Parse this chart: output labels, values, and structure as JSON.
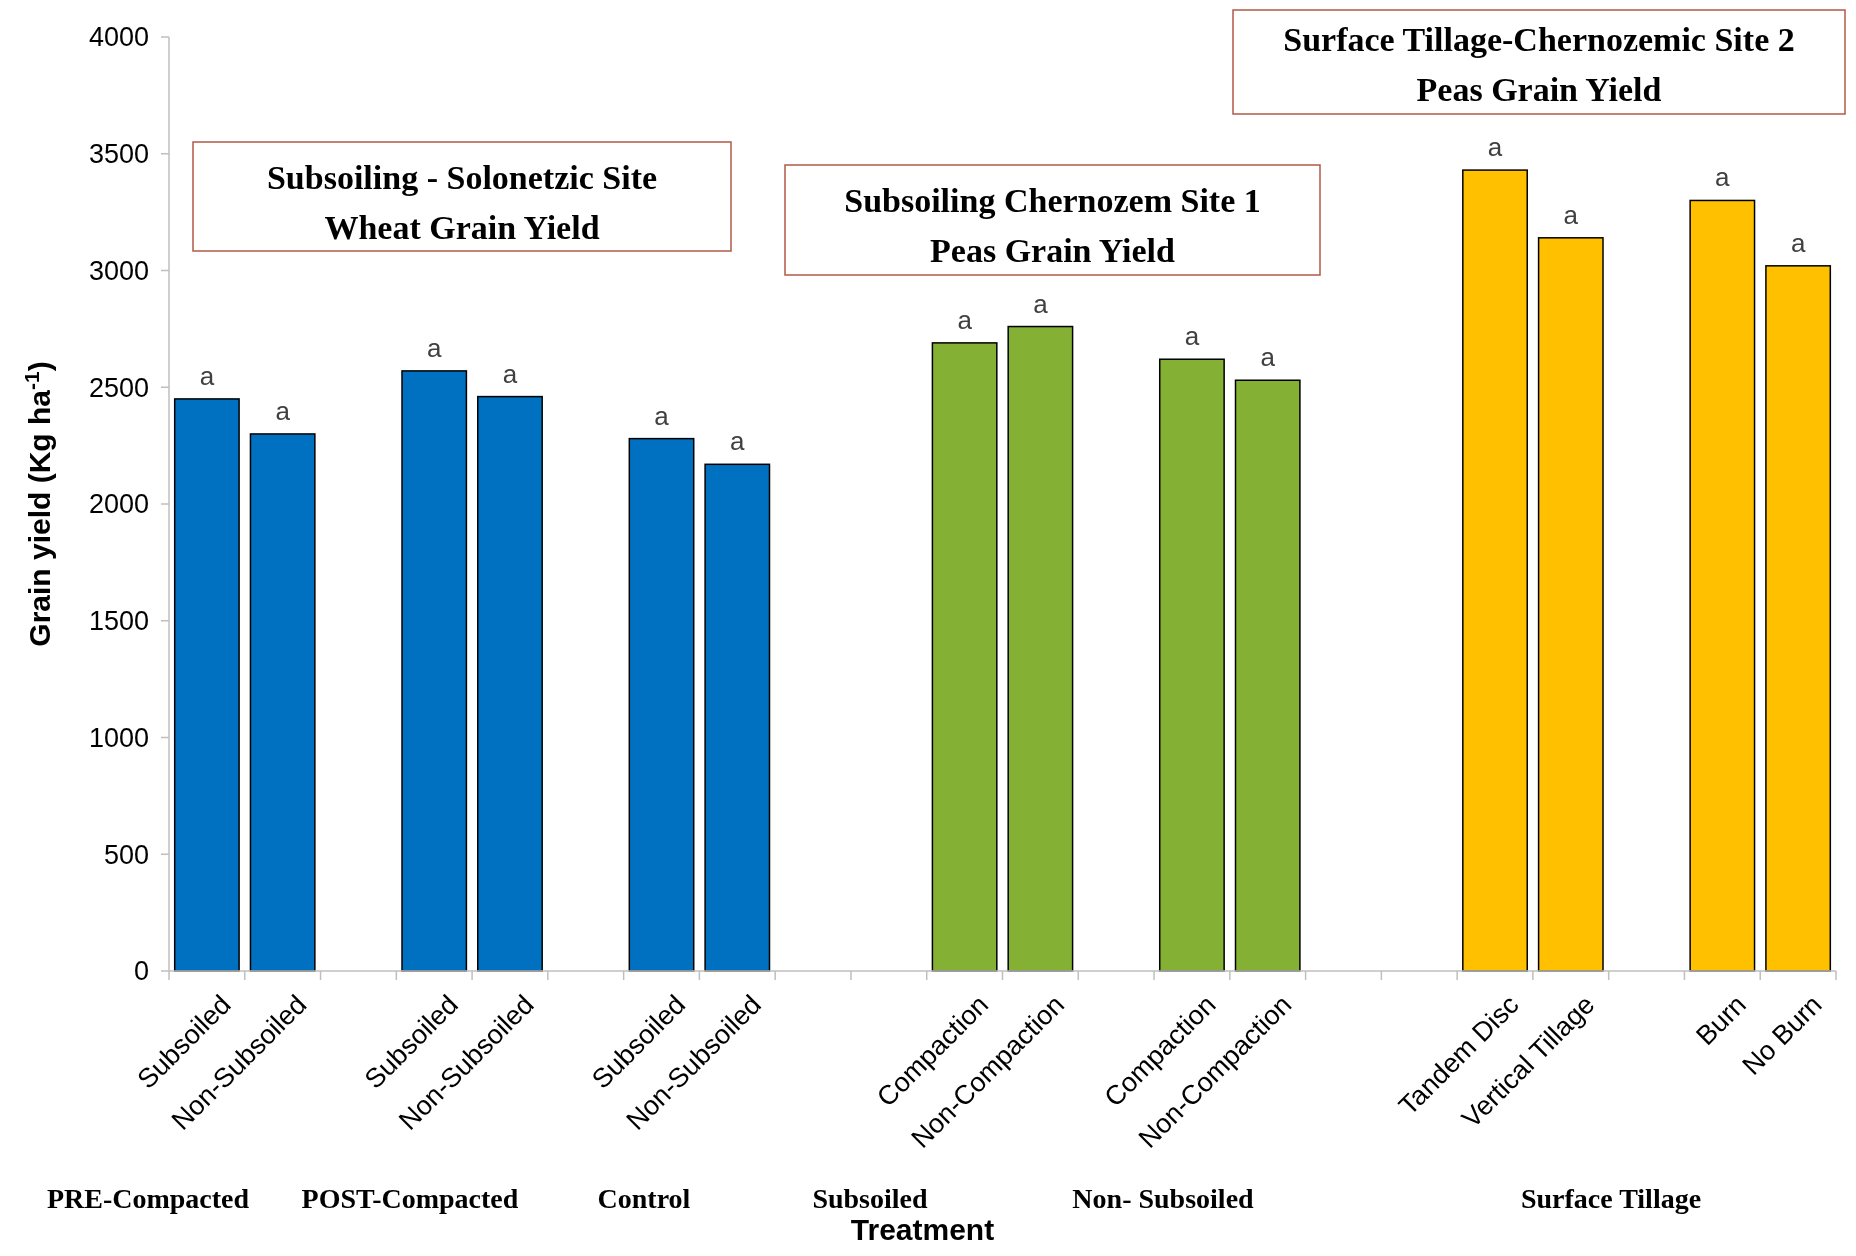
{
  "chart_data": {
    "type": "bar",
    "xlabel": "Treatment",
    "ylabel": "Grain yield (Kg ha$^{-1}$)",
    "categories": [
      "Subsoiled",
      "Non-Subsoiled",
      null,
      "Subsoiled",
      "Non-Subsoiled",
      null,
      "Subsoiled",
      "Non-Subsoiled",
      null,
      null,
      "Compaction",
      "Non-Compaction",
      null,
      "Compaction",
      "Non-Compaction",
      null,
      null,
      "Tandem Disc",
      "Vertical Tillage",
      null,
      "Burn",
      "No Burn"
    ],
    "values": [
      2450,
      2300,
      null,
      2570,
      2460,
      null,
      2280,
      2170,
      null,
      null,
      2690,
      2760,
      null,
      2620,
      2530,
      null,
      null,
      3430,
      3140,
      null,
      3300,
      3020
    ],
    "colors": [
      "#0070c0",
      "#0070c0",
      null,
      "#0070c0",
      "#0070c0",
      null,
      "#0070c0",
      "#0070c0",
      null,
      null,
      "#84b134",
      "#84b134",
      null,
      "#84b134",
      "#84b134",
      null,
      null,
      "#ffc000",
      "#ffc000",
      null,
      "#ffc000",
      "#ffc000"
    ],
    "value_labels": [
      "a",
      "a",
      null,
      "a",
      "a",
      null,
      "a",
      "a",
      null,
      null,
      "a",
      "a",
      null,
      "a",
      "a",
      null,
      null,
      "a",
      "a",
      null,
      "a",
      "a"
    ],
    "ylim": [
      0,
      4000
    ],
    "yticks": [
      0,
      500,
      1000,
      1500,
      2000,
      2500,
      3000,
      3500,
      4000
    ],
    "grid": false,
    "annotations": [
      "Subsoiling - Solonetzic Site\nWheat Grain Yield",
      "Subsoiling Chernozem Site 1\nPeas Grain Yield",
      "Surface Tillage-Chernozemic Site 2\nPeas Grain Yield",
      "PRE-Compacted",
      "POST-Compacted",
      "Control",
      "Subsoiled",
      "Non- Subsoiled",
      "Surface Tillage"
    ]
  }
}
